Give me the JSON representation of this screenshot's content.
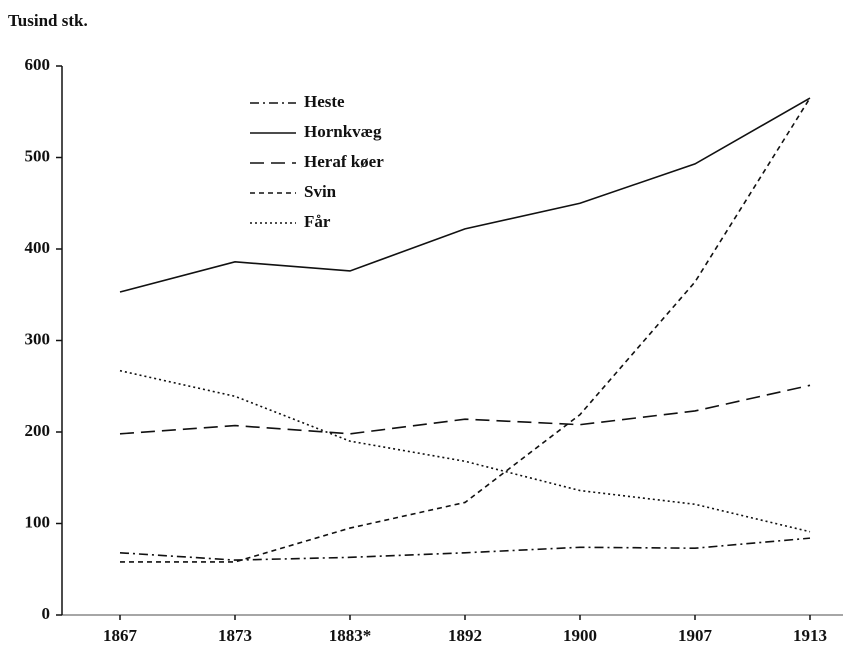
{
  "chart_data": {
    "type": "line",
    "y_axis_label": "Tusind stk.",
    "categories": [
      "1867",
      "1873",
      "1883*",
      "1892",
      "1900",
      "1907",
      "1913"
    ],
    "series": [
      {
        "name": "Heste",
        "color": "#111111",
        "dash": "9,4,2,4",
        "values": [
          68,
          60,
          63,
          68,
          74,
          73,
          84
        ]
      },
      {
        "name": "Hornkvæg",
        "color": "#111111",
        "dash": "none",
        "values": [
          353,
          386,
          376,
          422,
          450,
          493,
          565
        ]
      },
      {
        "name": "Heraf køer",
        "color": "#111111",
        "dash": "14,7",
        "values": [
          198,
          207,
          198,
          214,
          208,
          223,
          251
        ]
      },
      {
        "name": "Svin",
        "color": "#111111",
        "dash": "5,4",
        "values": [
          58,
          58,
          95,
          123,
          219,
          364,
          565
        ]
      },
      {
        "name": "Får",
        "color": "#111111",
        "dash": "2,3",
        "values": [
          267,
          239,
          190,
          168,
          136,
          121,
          91
        ]
      }
    ],
    "ylim": [
      0,
      600
    ],
    "yticks": [
      0,
      100,
      200,
      300,
      400,
      500,
      600
    ],
    "legend": "upper left"
  }
}
